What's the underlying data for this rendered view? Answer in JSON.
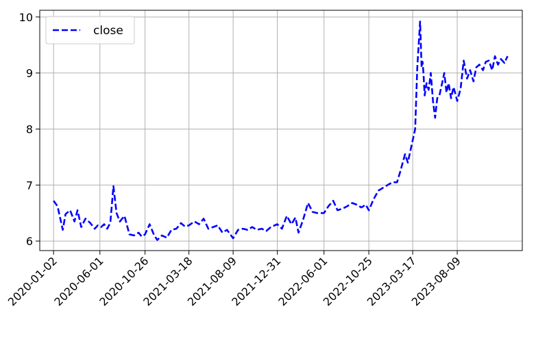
{
  "chart_data": {
    "type": "line",
    "title": "",
    "xlabel": "",
    "ylabel": "",
    "legend": {
      "placement": "upper-left",
      "entries": [
        "close"
      ]
    },
    "grid": true,
    "x_ticks": [
      "2020-01-02",
      "2020-06-01",
      "2020-10-26",
      "2021-03-18",
      "2021-08-09",
      "2021-12-31",
      "2022-06-01",
      "2022-10-25",
      "2023-03-17",
      "2023-08-09"
    ],
    "y_ticks": [
      "6",
      "7",
      "8",
      "9",
      "10"
    ],
    "ylim": [
      5.83,
      10.12
    ],
    "xlim": [
      "2019-11-18",
      "2024-03-08"
    ],
    "series": [
      {
        "name": "close",
        "color": "#0000ff",
        "style": "dashed",
        "x": [
          "2020-01-02",
          "2020-01-15",
          "2020-02-01",
          "2020-02-10",
          "2020-02-25",
          "2020-03-10",
          "2020-03-20",
          "2020-04-01",
          "2020-04-15",
          "2020-05-01",
          "2020-05-15",
          "2020-05-25",
          "2020-06-05",
          "2020-06-15",
          "2020-06-25",
          "2020-07-05",
          "2020-07-15",
          "2020-07-25",
          "2020-08-05",
          "2020-08-20",
          "2020-09-05",
          "2020-09-20",
          "2020-10-05",
          "2020-10-15",
          "2020-10-26",
          "2020-11-10",
          "2020-11-25",
          "2020-12-05",
          "2020-12-20",
          "2021-01-05",
          "2021-01-20",
          "2021-02-05",
          "2021-02-20",
          "2021-03-05",
          "2021-03-18",
          "2021-04-05",
          "2021-04-20",
          "2021-05-05",
          "2021-05-20",
          "2021-06-05",
          "2021-06-20",
          "2021-07-05",
          "2021-07-20",
          "2021-08-09",
          "2021-08-25",
          "2021-09-10",
          "2021-09-25",
          "2021-10-10",
          "2021-10-25",
          "2021-11-10",
          "2021-11-25",
          "2021-12-10",
          "2021-12-31",
          "2022-01-15",
          "2022-01-31",
          "2022-02-15",
          "2022-02-28",
          "2022-03-10",
          "2022-03-25",
          "2022-04-10",
          "2022-04-25",
          "2022-05-10",
          "2022-06-01",
          "2022-06-15",
          "2022-07-01",
          "2022-07-15",
          "2022-08-01",
          "2022-08-15",
          "2022-09-01",
          "2022-09-15",
          "2022-10-01",
          "2022-10-15",
          "2022-10-25",
          "2022-11-10",
          "2022-11-25",
          "2022-12-10",
          "2022-12-25",
          "2023-01-10",
          "2023-01-25",
          "2023-02-05",
          "2023-02-20",
          "2023-03-01",
          "2023-03-17",
          "2023-03-25",
          "2023-04-01",
          "2023-04-10",
          "2023-04-15",
          "2023-04-18",
          "2023-04-21",
          "2023-04-25",
          "2023-05-01",
          "2023-05-08",
          "2023-05-15",
          "2023-05-22",
          "2023-05-29",
          "2023-06-05",
          "2023-06-12",
          "2023-06-20",
          "2023-06-28",
          "2023-07-05",
          "2023-07-12",
          "2023-07-20",
          "2023-07-28",
          "2023-08-09",
          "2023-08-20",
          "2023-08-30",
          "2023-09-10",
          "2023-09-20",
          "2023-10-01",
          "2023-10-10",
          "2023-10-20",
          "2023-11-01",
          "2023-11-10",
          "2023-11-20",
          "2023-12-01",
          "2023-12-10",
          "2023-12-20",
          "2023-12-29",
          "2024-01-10",
          "2024-01-20"
        ],
        "values": [
          6.72,
          6.62,
          6.2,
          6.48,
          6.55,
          6.35,
          6.55,
          6.25,
          6.4,
          6.32,
          6.22,
          6.28,
          6.25,
          6.3,
          6.22,
          6.33,
          6.98,
          6.5,
          6.35,
          6.45,
          6.12,
          6.1,
          6.15,
          6.08,
          6.12,
          6.3,
          6.1,
          6.02,
          6.1,
          6.06,
          6.2,
          6.22,
          6.32,
          6.26,
          6.28,
          6.35,
          6.3,
          6.4,
          6.22,
          6.25,
          6.28,
          6.15,
          6.2,
          6.05,
          6.2,
          6.22,
          6.2,
          6.25,
          6.2,
          6.22,
          6.18,
          6.25,
          6.3,
          6.22,
          6.45,
          6.3,
          6.42,
          6.15,
          6.38,
          6.68,
          6.52,
          6.5,
          6.5,
          6.62,
          6.72,
          6.55,
          6.58,
          6.62,
          6.68,
          6.65,
          6.6,
          6.65,
          6.55,
          6.75,
          6.9,
          6.95,
          7.0,
          7.05,
          7.05,
          7.25,
          7.55,
          7.4,
          7.8,
          8.0,
          9.1,
          9.92,
          9.1,
          9.2,
          9.0,
          8.6,
          8.82,
          8.7,
          9.0,
          8.5,
          8.2,
          8.55,
          8.6,
          8.8,
          9.0,
          8.65,
          8.82,
          8.55,
          8.75,
          8.5,
          8.72,
          9.22,
          8.9,
          9.05,
          8.85,
          9.1,
          9.15,
          9.05,
          9.2,
          9.22,
          9.05,
          9.3,
          9.15,
          9.25,
          9.18,
          9.3
        ]
      }
    ]
  }
}
